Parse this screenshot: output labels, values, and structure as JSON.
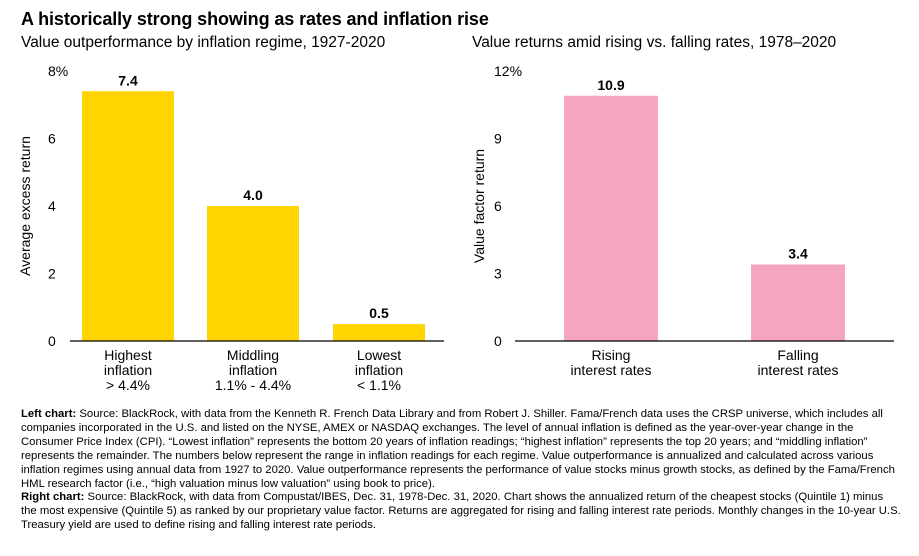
{
  "header": {
    "title": "A historically strong showing as rates and inflation rise"
  },
  "chart_data": [
    {
      "type": "bar",
      "title": "Value outperformance by inflation regime, 1927-2020",
      "ylabel": "Average excess return",
      "ylim": [
        0,
        8
      ],
      "yticks": [
        {
          "value": 0,
          "label": "0"
        },
        {
          "value": 2,
          "label": "2"
        },
        {
          "value": 4,
          "label": "4"
        },
        {
          "value": 6,
          "label": "6"
        },
        {
          "value": 8,
          "label": "8%"
        }
      ],
      "categories": [
        [
          "Highest",
          "inflation",
          "> 4.4%"
        ],
        [
          "Middling",
          "inflation",
          "1.1% - 4.4%"
        ],
        [
          "Lowest",
          "inflation",
          "< 1.1%"
        ]
      ],
      "values": [
        7.4,
        4.0,
        0.5
      ],
      "value_labels": [
        "7.4",
        "4.0",
        "0.5"
      ],
      "color": "#FFD400",
      "grid": false
    },
    {
      "type": "bar",
      "title": "Value returns amid rising vs. falling rates, 1978–2020",
      "ylabel": "Value factor return",
      "ylim": [
        0,
        12
      ],
      "yticks": [
        {
          "value": 0,
          "label": "0"
        },
        {
          "value": 3,
          "label": "3"
        },
        {
          "value": 6,
          "label": "6"
        },
        {
          "value": 9,
          "label": "9"
        },
        {
          "value": 12,
          "label": "12%"
        }
      ],
      "categories": [
        [
          "Rising",
          "interest rates"
        ],
        [
          "Falling",
          "interest rates"
        ]
      ],
      "values": [
        10.9,
        3.4
      ],
      "value_labels": [
        "10.9",
        "3.4"
      ],
      "color": "#F4A6BE",
      "grid": false
    }
  ],
  "notes": {
    "left_label": "Left chart:",
    "left_text": " Source: BlackRock, with data from the Kenneth R. French Data Library and from Robert J. Shiller. Fama/French data uses the CRSP universe, which includes all companies incorporated in the U.S. and listed on the NYSE, AMEX or NASDAQ exchanges. The level of annual inflation is defined as the year-over-year change in the Consumer Price Index (CPI). “Lowest inflation” represents the bottom 20 years of inflation readings; “highest inflation” represents the top 20 years; and “middling inflation” represents the remainder. The numbers below represent the range in inflation readings for each regime. Value outperformance is annualized and calculated across various inflation regimes using annual data from 1927 to 2020. Value outperformance represents the performance of value stocks minus growth stocks, as defined by the Fama/French HML research factor (i.e., “high valuation minus low valuation” using book to price).",
    "right_label": "Right chart:",
    "right_text": " Source: BlackRock, with data from Compustat/IBES, Dec. 31, 1978-Dec. 31, 2020. Chart shows the annualized return of the cheapest stocks (Quintile 1) minus the most expensive (Quintile 5) as ranked by our proprietary value factor. Returns are aggregated for rising and falling interest rate periods. Monthly changes in the 10-year U.S. Treasury yield are used to define rising and falling interest rate periods."
  }
}
